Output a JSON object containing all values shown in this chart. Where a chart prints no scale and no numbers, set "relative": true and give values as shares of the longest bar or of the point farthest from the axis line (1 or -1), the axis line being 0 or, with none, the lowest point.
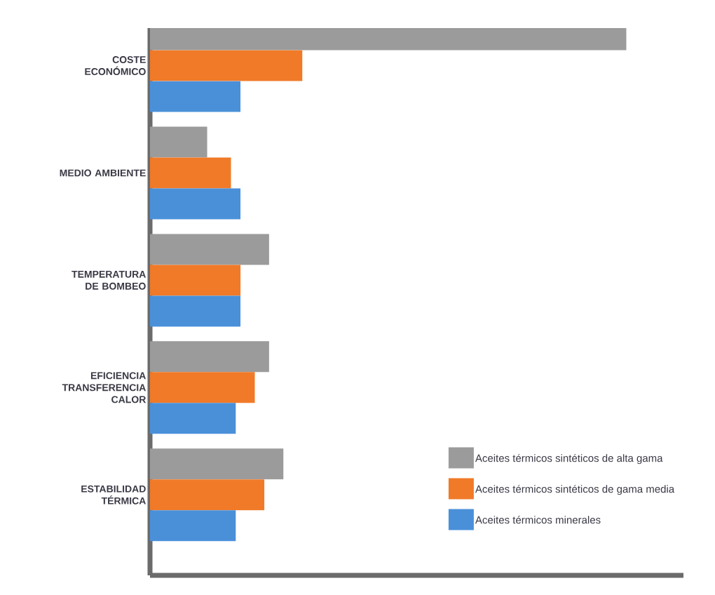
{
  "chart_data": {
    "type": "bar",
    "orientation": "horizontal",
    "relative": true,
    "categories": [
      "COSTE ECONÓMICO",
      "MEDIO AMBIENTE",
      "TEMPERATURA DE BOMBEO",
      "EFICIENCIA TRANSFERENCIA CALOR",
      "ESTABILIDAD TÉRMICA"
    ],
    "series": [
      {
        "name": "Aceites térmicos sintéticos de alta gama",
        "color": "#9b9b9b",
        "values": [
          1.0,
          0.12,
          0.25,
          0.25,
          0.28
        ]
      },
      {
        "name": "Aceites térmicos sintéticos de gama media",
        "color": "#f07a28",
        "values": [
          0.32,
          0.17,
          0.19,
          0.22,
          0.24
        ]
      },
      {
        "name": "Aceites térmicos minerales",
        "color": "#4a90d9",
        "values": [
          0.19,
          0.19,
          0.19,
          0.18,
          0.18
        ]
      }
    ],
    "legend": "bottom right"
  }
}
